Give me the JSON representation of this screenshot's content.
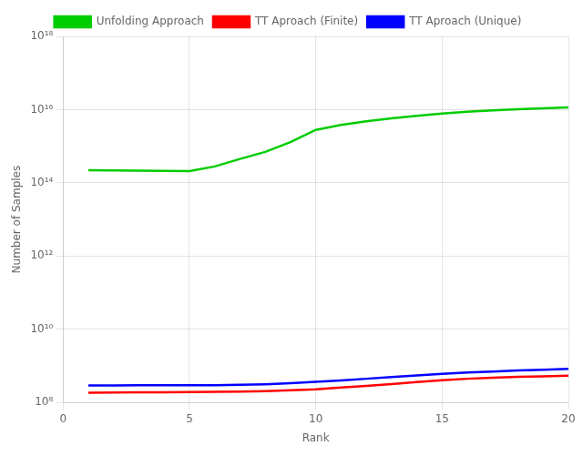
{
  "chart_data": {
    "type": "line",
    "xlabel": "Rank",
    "ylabel": "Number of Samples",
    "x": [
      1,
      2,
      3,
      4,
      5,
      6,
      7,
      8,
      9,
      10,
      11,
      12,
      13,
      14,
      15,
      16,
      17,
      18,
      19,
      20
    ],
    "series": [
      {
        "name": "Unfolding Approach",
        "color": "#00CC00",
        "values": [
          220000000000000.0,
          218000000000000.0,
          215000000000000.0,
          212000000000000.0,
          210000000000000.0,
          280000000000000.0,
          450000000000000.0,
          700000000000000.0,
          1300000000000000.0,
          2800000000000000.0,
          3800000000000000.0,
          4800000000000000.0,
          5800000000000000.0,
          6800000000000000.0,
          7800000000000000.0,
          8800000000000000.0,
          9500000000000000.0,
          1.02e+16,
          1.08e+16,
          1.15e+16
        ]
      },
      {
        "name": "TT Aproach (Finite)",
        "color": "#FF0000",
        "values": [
          185000000.0,
          187000000.0,
          189000000.0,
          191000000.0,
          193000000.0,
          195000000.0,
          197000000.0,
          205000000.0,
          215000000.0,
          230000000.0,
          255000000.0,
          285000000.0,
          320000000.0,
          360000000.0,
          405000000.0,
          445000000.0,
          475000000.0,
          500000000.0,
          520000000.0,
          540000000.0
        ]
      },
      {
        "name": "TT Aproach (Unique)",
        "color": "#0000FF",
        "values": [
          290000000.0,
          292000000.0,
          294000000.0,
          296000000.0,
          295000000.0,
          298000000.0,
          305000000.0,
          315000000.0,
          335000000.0,
          365000000.0,
          400000000.0,
          445000000.0,
          495000000.0,
          550000000.0,
          605000000.0,
          655000000.0,
          700000000.0,
          745000000.0,
          785000000.0,
          830000000.0
        ]
      }
    ],
    "xlim": [
      0,
      20
    ],
    "xticks": [
      0,
      5,
      10,
      15,
      20
    ],
    "ylim": [
      100000000.0,
      1e+18
    ],
    "yticks": [
      {
        "value": 100000000.0,
        "label": "10⁸"
      },
      {
        "value": 10000000000.0,
        "label": "10¹⁰"
      },
      {
        "value": 1000000000000.0,
        "label": "10¹²"
      },
      {
        "value": 100000000000000.0,
        "label": "10¹⁴"
      },
      {
        "value": 1e+16,
        "label": "10¹⁶"
      },
      {
        "value": 1e+18,
        "label": "10¹⁸"
      }
    ],
    "log": "y",
    "grid": true,
    "legend": "top"
  }
}
